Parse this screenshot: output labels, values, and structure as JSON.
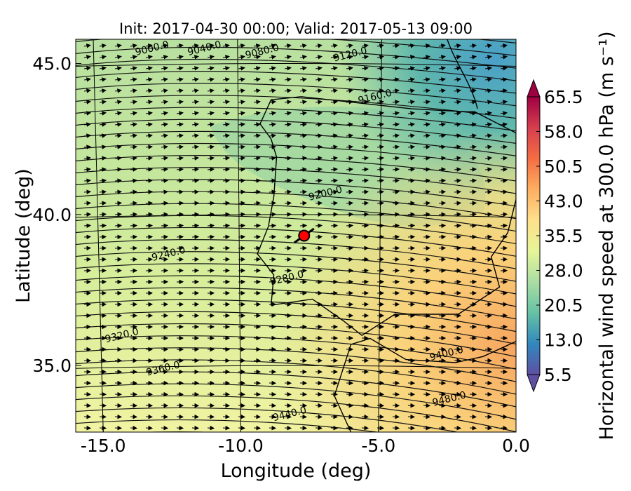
{
  "chart_data": {
    "type": "heatmap",
    "title": "Init: 2017-04-30 00:00; Valid: 2017-05-13 09:00",
    "xlabel": "Longitude (deg)",
    "ylabel": "Latitude (deg)",
    "colorbar_label": "Horizontal wind speed at 300.0 hPa (m s⁻¹)",
    "xlim": [
      -16.0,
      0.0
    ],
    "ylim": [
      32.8,
      45.8
    ],
    "x_ticks": [
      "-15.0",
      "-10.0",
      "-5.0",
      "0.0"
    ],
    "y_ticks": [
      "35.0",
      "40.0",
      "45.0"
    ],
    "colorbar_ticks": [
      "5.5",
      "13.0",
      "20.5",
      "28.0",
      "35.5",
      "43.0",
      "50.5",
      "58.0",
      "65.5"
    ],
    "colorbar_range": [
      5.5,
      65.5
    ],
    "colormap": [
      "#5e4fa2",
      "#3288bd",
      "#66c2a5",
      "#abdda4",
      "#e6f598",
      "#fee08b",
      "#fdae61",
      "#f46d43",
      "#d53e4f",
      "#9e0142"
    ],
    "contour_labels": [
      {
        "text": "9000.0",
        "lon": -13.2,
        "lat": 45.4
      },
      {
        "text": "9040.0",
        "lon": -11.3,
        "lat": 45.4
      },
      {
        "text": "9080.0",
        "lon": -9.2,
        "lat": 45.3
      },
      {
        "text": "9120.0",
        "lon": -6.0,
        "lat": 45.2
      },
      {
        "text": "9160.0",
        "lon": -5.1,
        "lat": 43.8
      },
      {
        "text": "9200.0",
        "lon": -6.9,
        "lat": 40.6
      },
      {
        "text": "9240.0",
        "lon": -12.6,
        "lat": 38.6
      },
      {
        "text": "9280.0",
        "lon": -8.3,
        "lat": 37.8
      },
      {
        "text": "9320.0",
        "lon": -14.3,
        "lat": 35.9
      },
      {
        "text": "9360.0",
        "lon": -12.8,
        "lat": 34.8
      },
      {
        "text": "9400.0",
        "lon": -2.5,
        "lat": 35.3
      },
      {
        "text": "9440.0",
        "lon": -8.2,
        "lat": 33.3
      },
      {
        "text": "9480.0",
        "lon": -2.4,
        "lat": 33.8
      }
    ],
    "marker": {
      "lon": -7.7,
      "lat": 39.3,
      "color": "#ff0000"
    }
  }
}
